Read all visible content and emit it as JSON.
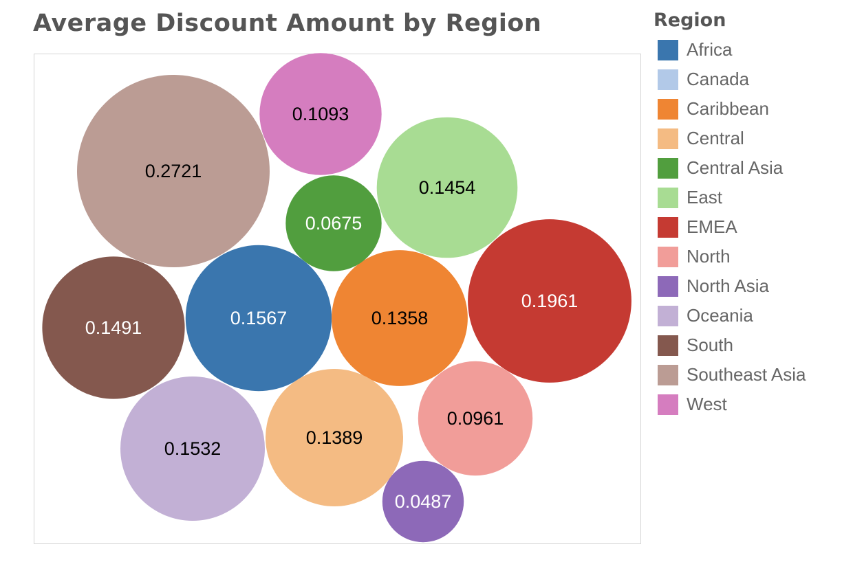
{
  "chart_data": {
    "type": "packed-bubble",
    "title": "Average Discount Amount by Region",
    "legend_title": "Region",
    "legend_position": "right",
    "measure": "Average Discount Amount",
    "points": [
      {
        "category": "Africa",
        "value": 0.1567,
        "label": "0.1567",
        "color": "#3a76ae",
        "label_color": "#ffffff"
      },
      {
        "category": "Canada",
        "value": null,
        "label": "",
        "color": "#b2c9e8",
        "label_color": "#000000"
      },
      {
        "category": "Caribbean",
        "value": 0.1358,
        "label": "0.1358",
        "color": "#ef8533",
        "label_color": "#000000"
      },
      {
        "category": "Central",
        "value": 0.1389,
        "label": "0.1389",
        "color": "#f4bb83",
        "label_color": "#000000"
      },
      {
        "category": "Central Asia",
        "value": 0.0675,
        "label": "0.0675",
        "color": "#519e3e",
        "label_color": "#ffffff"
      },
      {
        "category": "East",
        "value": 0.1454,
        "label": "0.1454",
        "color": "#a8dc93",
        "label_color": "#000000"
      },
      {
        "category": "EMEA",
        "value": 0.1961,
        "label": "0.1961",
        "color": "#c53a32",
        "label_color": "#ffffff"
      },
      {
        "category": "North",
        "value": 0.0961,
        "label": "0.0961",
        "color": "#f19d99",
        "label_color": "#000000"
      },
      {
        "category": "North Asia",
        "value": 0.0487,
        "label": "0.0487",
        "color": "#8d69b8",
        "label_color": "#ffffff"
      },
      {
        "category": "Oceania",
        "value": 0.1532,
        "label": "0.1532",
        "color": "#c2b0d5",
        "label_color": "#000000"
      },
      {
        "category": "South",
        "value": 0.1491,
        "label": "0.1491",
        "color": "#84584e",
        "label_color": "#ffffff"
      },
      {
        "category": "Southeast Asia",
        "value": 0.2721,
        "label": "0.2721",
        "color": "#bb9c94",
        "label_color": "#000000"
      },
      {
        "category": "West",
        "value": 0.1093,
        "label": "0.1093",
        "color": "#d57dbf",
        "label_color": "#000000"
      }
    ]
  }
}
